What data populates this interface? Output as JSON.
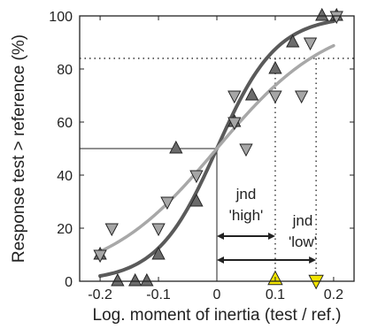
{
  "chart_data": {
    "type": "scatter",
    "xlabel": "Log. moment of inertia (test / ref.)",
    "ylabel": "Response test > reference (%)",
    "xlim": [
      -0.235,
      0.235
    ],
    "ylim": [
      0,
      100
    ],
    "xticks": [
      -0.2,
      -0.1,
      0,
      0.1,
      0.2
    ],
    "xtick_labels": [
      "-0.2",
      "-0.1",
      "0",
      "0.1",
      "0.2"
    ],
    "yticks": [
      0,
      20,
      40,
      60,
      80,
      100
    ],
    "ytick_labels": [
      "0",
      "20",
      "40",
      "60",
      "80",
      "100"
    ],
    "grid": false,
    "series": [
      {
        "marker": "triangle-up",
        "color": "#6b6b6b",
        "points": [
          {
            "x": -0.2,
            "y": 10
          },
          {
            "x": -0.17,
            "y": 0
          },
          {
            "x": -0.14,
            "y": 0
          },
          {
            "x": -0.12,
            "y": 0
          },
          {
            "x": -0.1,
            "y": 10
          },
          {
            "x": -0.07,
            "y": 50
          },
          {
            "x": -0.035,
            "y": 30
          },
          {
            "x": 0.03,
            "y": 60
          },
          {
            "x": 0.06,
            "y": 70
          },
          {
            "x": 0.1,
            "y": 80
          },
          {
            "x": 0.13,
            "y": 90
          },
          {
            "x": 0.18,
            "y": 100
          },
          {
            "x": 0.205,
            "y": 100
          }
        ]
      },
      {
        "marker": "triangle-down",
        "color": "#a6a6a6",
        "points": [
          {
            "x": -0.2,
            "y": 10
          },
          {
            "x": -0.18,
            "y": 20
          },
          {
            "x": -0.1,
            "y": 20
          },
          {
            "x": -0.085,
            "y": 30
          },
          {
            "x": -0.035,
            "y": 40
          },
          {
            "x": 0.03,
            "y": 60
          },
          {
            "x": 0.03,
            "y": 70
          },
          {
            "x": 0.05,
            "y": 50
          },
          {
            "x": 0.1,
            "y": 70
          },
          {
            "x": 0.145,
            "y": 70
          },
          {
            "x": 0.16,
            "y": 90
          },
          {
            "x": 0.205,
            "y": 100
          }
        ]
      }
    ],
    "curves": [
      {
        "color": "#5a5a5a",
        "x0": 0,
        "slope": 19.45
      },
      {
        "color": "#a8a8a8",
        "x0": 0,
        "slope": 10.35
      }
    ],
    "pse_line": {
      "y": 50,
      "x": 0
    },
    "threshold_line": {
      "y": 84,
      "x_high": 0.1,
      "x_low": 0.17
    },
    "threshold_markers": [
      {
        "x": 0.1,
        "marker": "triangle-up",
        "color": "#f2e400"
      },
      {
        "x": 0.17,
        "marker": "triangle-down",
        "color": "#f2e400"
      }
    ],
    "annotations": [
      {
        "text": "jnd",
        "x": 0.05,
        "y": 31
      },
      {
        "text": "'high'",
        "x": 0.05,
        "y": 23
      },
      {
        "text": "jnd",
        "x": 0.147,
        "y": 21
      },
      {
        "text": "'low'",
        "x": 0.147,
        "y": 13
      }
    ],
    "arrows": [
      {
        "x1": 0,
        "x2": 0.1,
        "y": 17
      },
      {
        "x1": 0,
        "x2": 0.17,
        "y": 8
      }
    ]
  }
}
